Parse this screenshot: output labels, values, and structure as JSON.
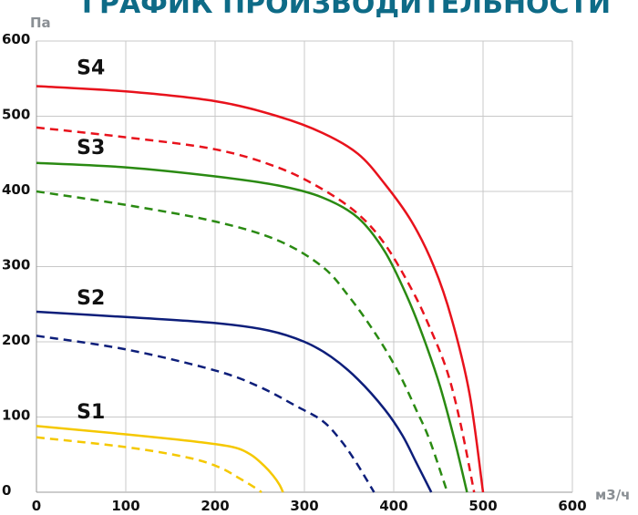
{
  "chart_data": {
    "type": "line",
    "title": "ГРАФИК ПРОИЗВОДИТЕЛЬНОСТИ",
    "xlabel": "м3/ч",
    "ylabel": "Па",
    "xlim": [
      0,
      600
    ],
    "ylim": [
      0,
      600
    ],
    "xticks": [
      0,
      100,
      200,
      300,
      400,
      500,
      600
    ],
    "yticks": [
      0,
      100,
      200,
      300,
      400,
      500,
      600
    ],
    "grid": true,
    "series": [
      {
        "name": "S4",
        "color": "#e8121c",
        "dash": false,
        "points": [
          [
            0,
            540
          ],
          [
            100,
            533
          ],
          [
            200,
            520
          ],
          [
            270,
            500
          ],
          [
            320,
            478
          ],
          [
            360,
            450
          ],
          [
            390,
            410
          ],
          [
            420,
            360
          ],
          [
            445,
            300
          ],
          [
            465,
            230
          ],
          [
            485,
            130
          ],
          [
            500,
            0
          ]
        ]
      },
      {
        "name": "",
        "color": "#e8121c",
        "dash": true,
        "points": [
          [
            0,
            485
          ],
          [
            100,
            472
          ],
          [
            200,
            456
          ],
          [
            270,
            432
          ],
          [
            320,
            403
          ],
          [
            360,
            370
          ],
          [
            390,
            330
          ],
          [
            420,
            270
          ],
          [
            440,
            220
          ],
          [
            460,
            160
          ],
          [
            475,
            90
          ],
          [
            490,
            0
          ]
        ]
      },
      {
        "name": "S3",
        "color": "#2a8a12",
        "dash": false,
        "points": [
          [
            0,
            438
          ],
          [
            100,
            432
          ],
          [
            200,
            420
          ],
          [
            270,
            408
          ],
          [
            320,
            392
          ],
          [
            360,
            365
          ],
          [
            390,
            320
          ],
          [
            415,
            260
          ],
          [
            435,
            200
          ],
          [
            452,
            140
          ],
          [
            468,
            70
          ],
          [
            482,
            0
          ]
        ]
      },
      {
        "name": "",
        "color": "#2a8a12",
        "dash": true,
        "points": [
          [
            0,
            400
          ],
          [
            100,
            382
          ],
          [
            200,
            360
          ],
          [
            270,
            335
          ],
          [
            320,
            300
          ],
          [
            350,
            260
          ],
          [
            380,
            210
          ],
          [
            405,
            160
          ],
          [
            425,
            110
          ],
          [
            440,
            70
          ],
          [
            460,
            0
          ]
        ]
      },
      {
        "name": "S2",
        "color": "#0d1e7a",
        "dash": false,
        "points": [
          [
            0,
            240
          ],
          [
            100,
            233
          ],
          [
            200,
            225
          ],
          [
            260,
            215
          ],
          [
            300,
            200
          ],
          [
            330,
            180
          ],
          [
            360,
            150
          ],
          [
            390,
            110
          ],
          [
            410,
            75
          ],
          [
            425,
            40
          ],
          [
            442,
            0
          ]
        ]
      },
      {
        "name": "",
        "color": "#0d1e7a",
        "dash": true,
        "points": [
          [
            0,
            208
          ],
          [
            100,
            190
          ],
          [
            200,
            162
          ],
          [
            250,
            140
          ],
          [
            290,
            115
          ],
          [
            320,
            95
          ],
          [
            340,
            70
          ],
          [
            355,
            45
          ],
          [
            368,
            20
          ],
          [
            378,
            0
          ]
        ]
      },
      {
        "name": "S1",
        "color": "#f5c800",
        "dash": false,
        "points": [
          [
            0,
            88
          ],
          [
            100,
            77
          ],
          [
            180,
            67
          ],
          [
            220,
            60
          ],
          [
            240,
            50
          ],
          [
            255,
            35
          ],
          [
            265,
            22
          ],
          [
            272,
            10
          ],
          [
            276,
            0
          ]
        ]
      },
      {
        "name": "",
        "color": "#f5c800",
        "dash": true,
        "points": [
          [
            0,
            73
          ],
          [
            100,
            60
          ],
          [
            170,
            46
          ],
          [
            205,
            33
          ],
          [
            225,
            20
          ],
          [
            242,
            8
          ],
          [
            252,
            0
          ]
        ]
      }
    ],
    "series_labels": [
      {
        "text": "S4",
        "x": 45,
        "y": 556
      },
      {
        "text": "S3",
        "x": 45,
        "y": 450
      },
      {
        "text": "S2",
        "x": 45,
        "y": 250
      },
      {
        "text": "S1",
        "x": 45,
        "y": 98
      }
    ]
  }
}
